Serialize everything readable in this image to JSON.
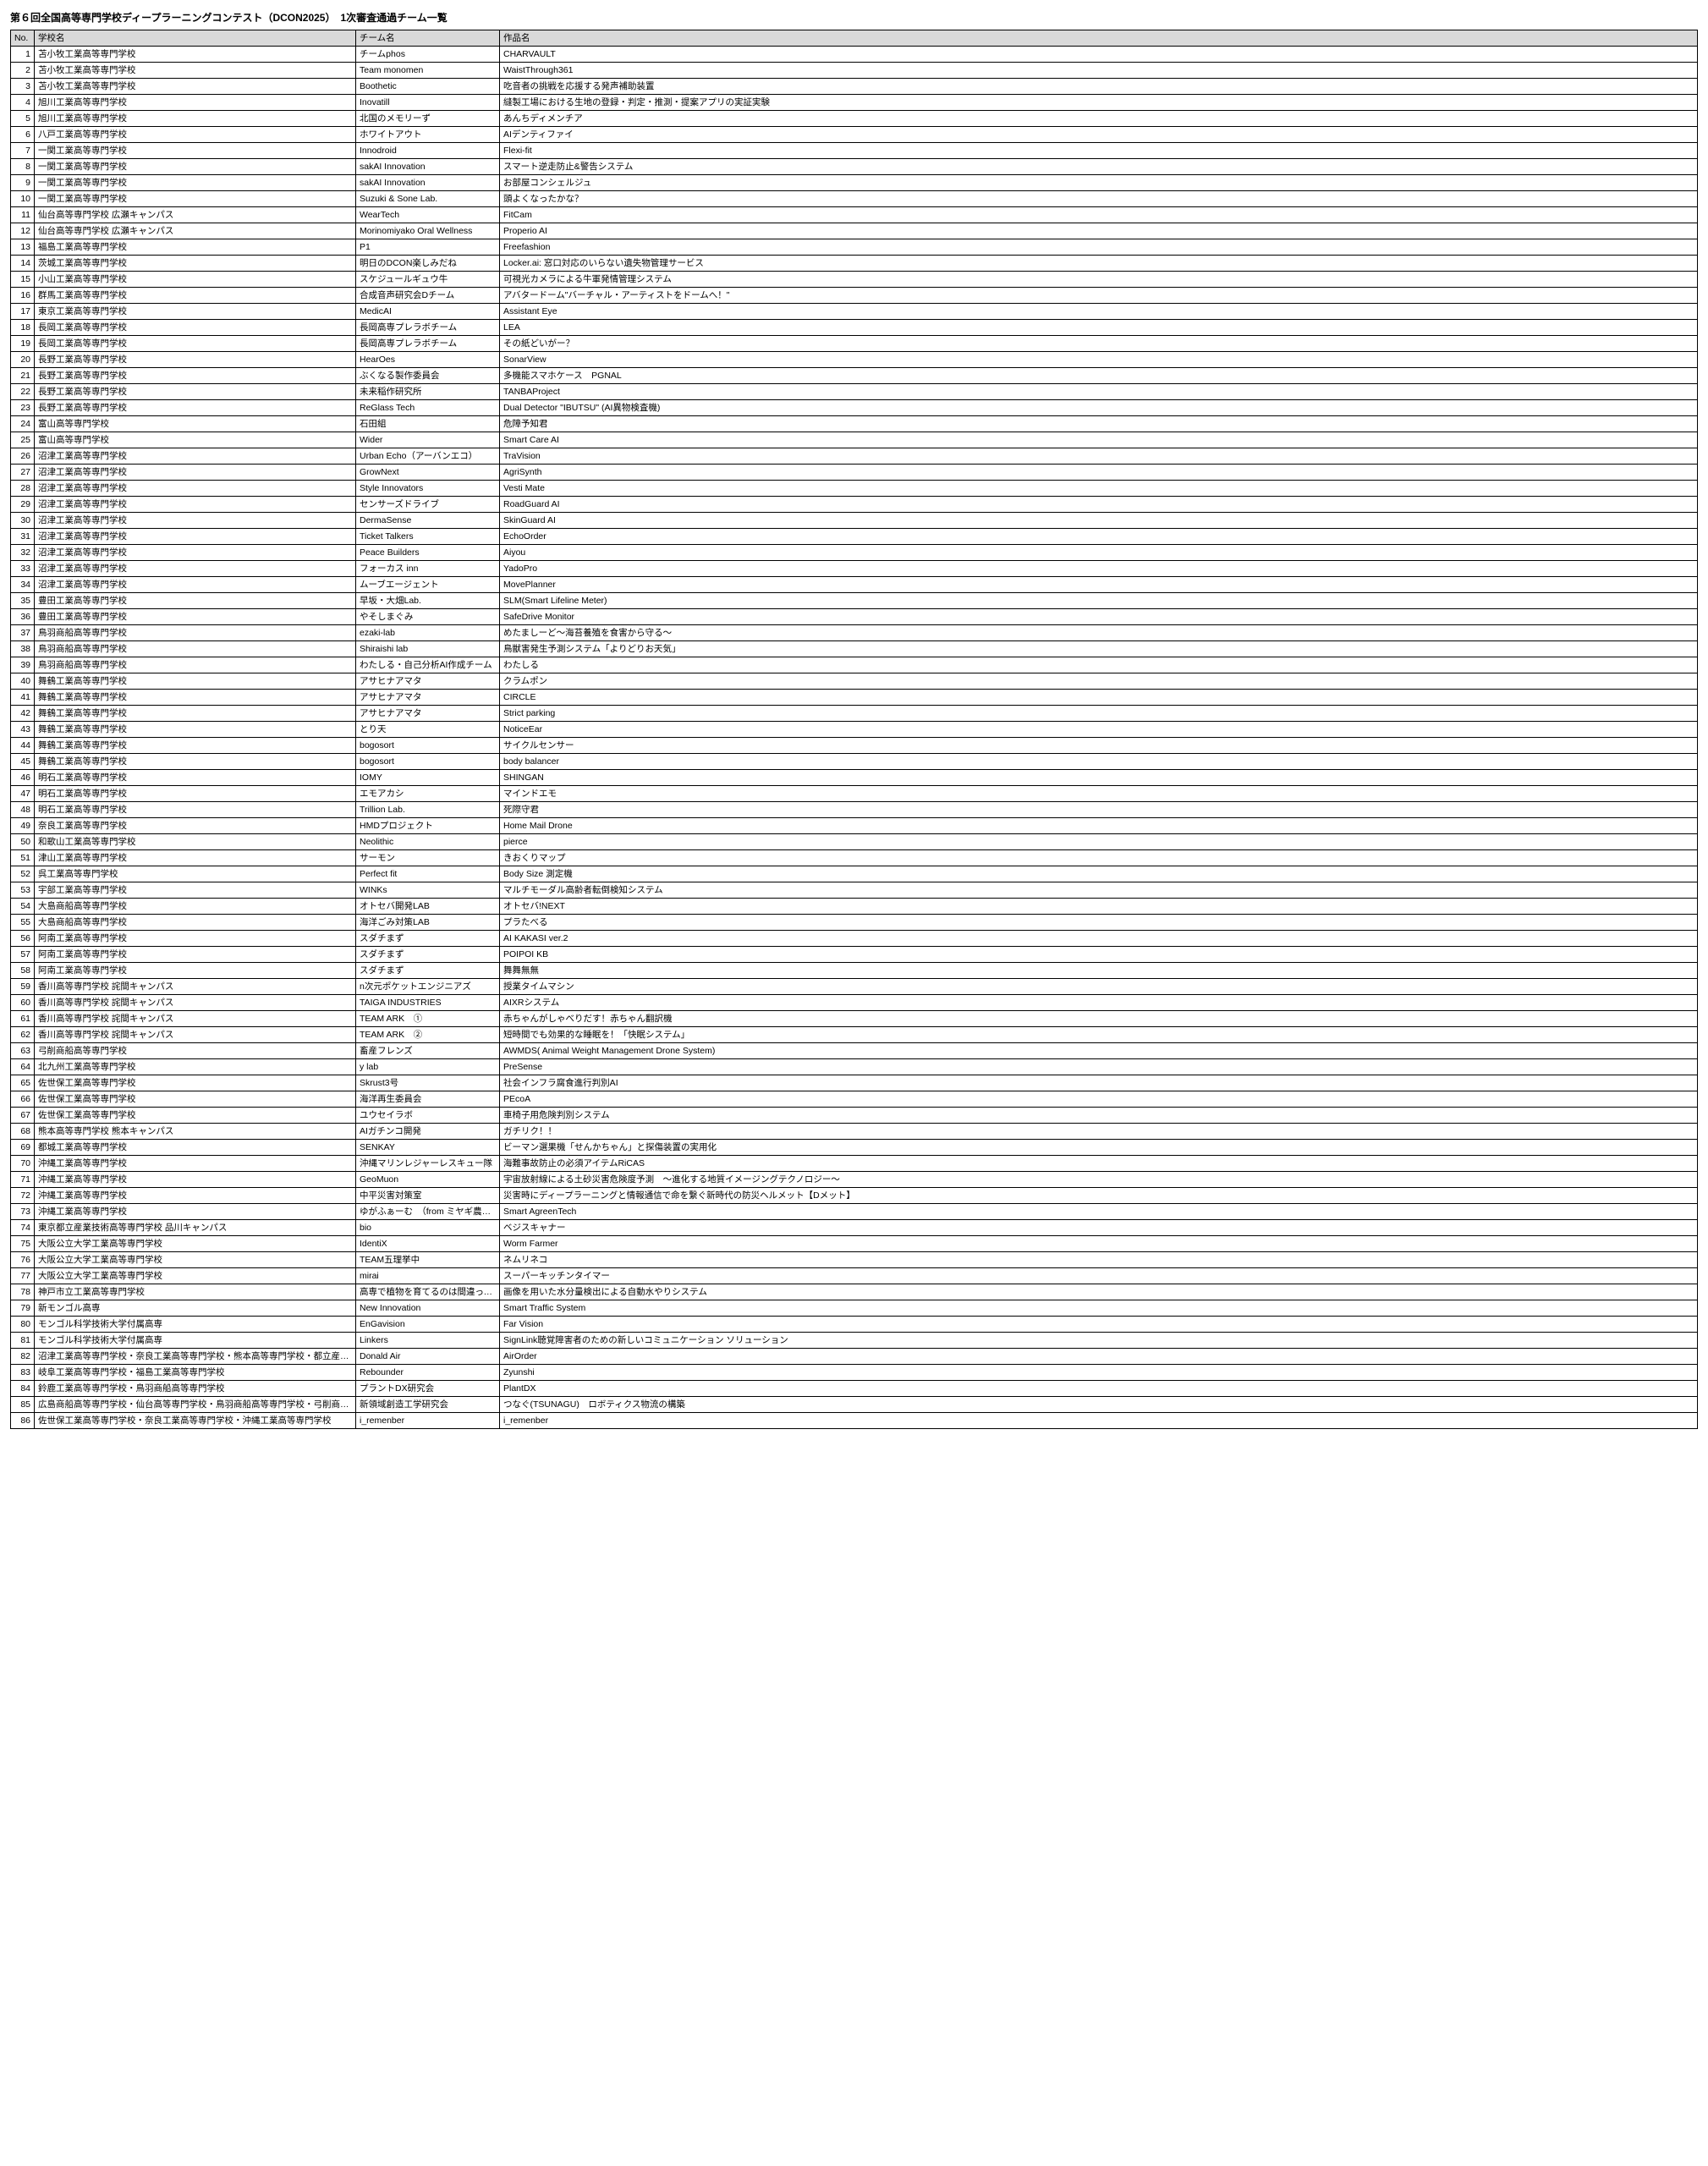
{
  "title": "第６回全国高等専門学校ディープラーニングコンテスト（DCON2025）　1次審査通過チーム一覧",
  "columns": [
    "No.",
    "学校名",
    "チーム名",
    "作品名"
  ],
  "rows": [
    {
      "no": 1,
      "school": "苫小牧工業高等専門学校",
      "team": "チームphos",
      "work": "CHARVAULT"
    },
    {
      "no": 2,
      "school": "苫小牧工業高等専門学校",
      "team": "Team monomen",
      "work": "WaistThrough361"
    },
    {
      "no": 3,
      "school": "苫小牧工業高等専門学校",
      "team": "Boothetic",
      "work": "吃音者の挑戦を応援する発声補助装置"
    },
    {
      "no": 4,
      "school": "旭川工業高等専門学校",
      "team": "Inovatill",
      "work": "縫製工場における生地の登録・判定・推測・提案アプリの実証実験"
    },
    {
      "no": 5,
      "school": "旭川工業高等専門学校",
      "team": "北国のメモリーず",
      "work": "あんちディメンチア"
    },
    {
      "no": 6,
      "school": "八戸工業高等専門学校",
      "team": "ホワイトアウト",
      "work": "AIデンティファイ"
    },
    {
      "no": 7,
      "school": "一関工業高等専門学校",
      "team": "Innodroid",
      "work": "Flexi-fit"
    },
    {
      "no": 8,
      "school": "一関工業高等専門学校",
      "team": "sakAI Innovation",
      "work": "スマート逆走防止&警告システム"
    },
    {
      "no": 9,
      "school": "一関工業高等専門学校",
      "team": "sakAI Innovation",
      "work": "お部屋コンシェルジュ"
    },
    {
      "no": 10,
      "school": "一関工業高等専門学校",
      "team": "Suzuki & Sone Lab.",
      "work": "頭よくなったかな？"
    },
    {
      "no": 11,
      "school": "仙台高等専門学校 広瀬キャンパス",
      "team": "WearTech",
      "work": "FitCam"
    },
    {
      "no": 12,
      "school": "仙台高等専門学校 広瀬キャンパス",
      "team": "Morinomiyako Oral Wellness",
      "work": "Properio AI"
    },
    {
      "no": 13,
      "school": "福島工業高等専門学校",
      "team": "P1",
      "work": "Freefashion"
    },
    {
      "no": 14,
      "school": "茨城工業高等専門学校",
      "team": "明日のDCON楽しみだね",
      "work": "Locker.ai: 窓口対応のいらない遺失物管理サービス"
    },
    {
      "no": 15,
      "school": "小山工業高等専門学校",
      "team": "スケジュールギュウ牛",
      "work": "可視光カメラによる牛軍発情管理システム"
    },
    {
      "no": 16,
      "school": "群馬工業高等専門学校",
      "team": "合成音声研究会Dチーム",
      "work": "アバタードーム\"バーチャル・アーティストをドームへ！\""
    },
    {
      "no": 17,
      "school": "東京工業高等専門学校",
      "team": "MedicAI",
      "work": "Assistant Eye"
    },
    {
      "no": 18,
      "school": "長岡工業高等専門学校",
      "team": "長岡高専プレラボチーム",
      "work": "LEA"
    },
    {
      "no": 19,
      "school": "長岡工業高等専門学校",
      "team": "長岡高専プレラボチーム",
      "work": "その紙どいがー？"
    },
    {
      "no": 20,
      "school": "長野工業高等専門学校",
      "team": "HearOes",
      "work": "SonarView"
    },
    {
      "no": 21,
      "school": "長野工業高等専門学校",
      "team": "ぶくなる製作委員会",
      "work": "多機能スマホケース　PGNAL"
    },
    {
      "no": 22,
      "school": "長野工業高等専門学校",
      "team": "未来稲作研究所",
      "work": "TANBAProject"
    },
    {
      "no": 23,
      "school": "長野工業高等専門学校",
      "team": "ReGlass Tech",
      "work": "Dual Detector \"IBUTSU\" (AI異物検査機)"
    },
    {
      "no": 24,
      "school": "富山高等専門学校",
      "team": "石田組",
      "work": "危障予知君"
    },
    {
      "no": 25,
      "school": "富山高等専門学校",
      "team": "Wider",
      "work": "Smart Care AI"
    },
    {
      "no": 26,
      "school": "沼津工業高等専門学校",
      "team": "Urban Echo（アーバンエコ）",
      "work": "TraVision"
    },
    {
      "no": 27,
      "school": "沼津工業高等専門学校",
      "team": "GrowNext",
      "work": "AgriSynth"
    },
    {
      "no": 28,
      "school": "沼津工業高等専門学校",
      "team": "Style Innovators",
      "work": "Vesti Mate"
    },
    {
      "no": 29,
      "school": "沼津工業高等専門学校",
      "team": "センサーズドライブ",
      "work": "RoadGuard AI"
    },
    {
      "no": 30,
      "school": "沼津工業高等専門学校",
      "team": "DermaSense",
      "work": "SkinGuard AI"
    },
    {
      "no": 31,
      "school": "沼津工業高等専門学校",
      "team": "Ticket Talkers",
      "work": "EchoOrder"
    },
    {
      "no": 32,
      "school": "沼津工業高等専門学校",
      "team": "Peace Builders",
      "work": "Aiyou"
    },
    {
      "no": 33,
      "school": "沼津工業高等専門学校",
      "team": "フォーカス inn",
      "work": "YadoPro"
    },
    {
      "no": 34,
      "school": "沼津工業高等専門学校",
      "team": "ムーブエージェント",
      "work": "MovePlanner"
    },
    {
      "no": 35,
      "school": "豊田工業高等専門学校",
      "team": "早坂・大畑Lab.",
      "work": "SLM(Smart Lifeline Meter)"
    },
    {
      "no": 36,
      "school": "豊田工業高等専門学校",
      "team": "やそしまぐみ",
      "work": "SafeDrive Monitor"
    },
    {
      "no": 37,
      "school": "鳥羽商船高等専門学校",
      "team": "ezaki-lab",
      "work": "めたましーど～海苔養殖を食害から守る～"
    },
    {
      "no": 38,
      "school": "鳥羽商船高等専門学校",
      "team": "Shiraishi lab",
      "work": "鳥獣害発生予測システム「よりどりお天気」"
    },
    {
      "no": 39,
      "school": "鳥羽商船高等専門学校",
      "team": "わたしる・自己分析AI作成チーム",
      "work": "わたしる"
    },
    {
      "no": 40,
      "school": "舞鶴工業高等専門学校",
      "team": "アサヒナアマタ",
      "work": "クラムポン"
    },
    {
      "no": 41,
      "school": "舞鶴工業高等専門学校",
      "team": "アサヒナアマタ",
      "work": "CIRCLE"
    },
    {
      "no": 42,
      "school": "舞鶴工業高等専門学校",
      "team": "アサヒナアマタ",
      "work": "Strict parking"
    },
    {
      "no": 43,
      "school": "舞鶴工業高等専門学校",
      "team": "とり天",
      "work": "NoticeEar"
    },
    {
      "no": 44,
      "school": "舞鶴工業高等専門学校",
      "team": "bogosort",
      "work": "サイクルセンサー"
    },
    {
      "no": 45,
      "school": "舞鶴工業高等専門学校",
      "team": "bogosort",
      "work": "body balancer"
    },
    {
      "no": 46,
      "school": "明石工業高等専門学校",
      "team": "IOMY",
      "work": "SHINGAN"
    },
    {
      "no": 47,
      "school": "明石工業高等専門学校",
      "team": "エモアカシ",
      "work": "マインドエモ"
    },
    {
      "no": 48,
      "school": "明石工業高等専門学校",
      "team": "Trillion Lab.",
      "work": "死際守君"
    },
    {
      "no": 49,
      "school": "奈良工業高等専門学校",
      "team": "HMDプロジェクト",
      "work": "Home Mail Drone"
    },
    {
      "no": 50,
      "school": "和歌山工業高等専門学校",
      "team": "Neolithic",
      "work": "pierce"
    },
    {
      "no": 51,
      "school": "津山工業高等専門学校",
      "team": "サーモン",
      "work": "きおくりマップ"
    },
    {
      "no": 52,
      "school": "呉工業高等専門学校",
      "team": "Perfect fit",
      "work": "Body Size 測定機"
    },
    {
      "no": 53,
      "school": "宇部工業高等専門学校",
      "team": "WINKs",
      "work": "マルチモーダル高齢者転倒検知システム"
    },
    {
      "no": 54,
      "school": "大島商船高等専門学校",
      "team": "オトセバ開発LAB",
      "work": "オトセバ!NEXT"
    },
    {
      "no": 55,
      "school": "大島商船高等専門学校",
      "team": "海洋ごみ対策LAB",
      "work": "プラたべる"
    },
    {
      "no": 56,
      "school": "阿南工業高等専門学校",
      "team": "スダチまず",
      "work": "AI KAKASI ver.2"
    },
    {
      "no": 57,
      "school": "阿南工業高等専門学校",
      "team": "スダチまず",
      "work": "POIPOI KB"
    },
    {
      "no": 58,
      "school": "阿南工業高等専門学校",
      "team": "スダチまず",
      "work": "舞舞無無"
    },
    {
      "no": 59,
      "school": "香川高等専門学校 詫間キャンパス",
      "team": "n次元ポケットエンジニアズ",
      "work": "授業タイムマシン"
    },
    {
      "no": 60,
      "school": "香川高等専門学校 詫間キャンパス",
      "team": "TAIGA INDUSTRIES",
      "work": "AIXRシステム"
    },
    {
      "no": 61,
      "school": "香川高等専門学校 詫間キャンパス",
      "team": "TEAM ARK　①",
      "work": "赤ちゃんがしゃべりだす！赤ちゃん翻訳機"
    },
    {
      "no": 62,
      "school": "香川高等専門学校 詫間キャンパス",
      "team": "TEAM ARK　②",
      "work": "短時間でも効果的な睡眠を！「快眠システム」"
    },
    {
      "no": 63,
      "school": "弓削商船高等専門学校",
      "team": "畜産フレンズ",
      "work": "AWMDS( Animal Weight Management Drone System)"
    },
    {
      "no": 64,
      "school": "北九州工業高等専門学校",
      "team": "y lab",
      "work": "PreSense"
    },
    {
      "no": 65,
      "school": "佐世保工業高等専門学校",
      "team": "Skrust3号",
      "work": "社会インフラ腐食進行判別AI"
    },
    {
      "no": 66,
      "school": "佐世保工業高等専門学校",
      "team": "海洋再生委員会",
      "work": "PEcoA"
    },
    {
      "no": 67,
      "school": "佐世保工業高等専門学校",
      "team": "ユウセイラボ",
      "work": "車椅子用危険判別システム"
    },
    {
      "no": 68,
      "school": "熊本高等専門学校 熊本キャンパス",
      "team": "AIガチンコ開発",
      "work": "ガチリク！！"
    },
    {
      "no": 69,
      "school": "都城工業高等専門学校",
      "team": "SENKAY",
      "work": "ビーマン選果機「せんかちゃん」と探傷装置の実用化"
    },
    {
      "no": 70,
      "school": "沖縄工業高等専門学校",
      "team": "沖縄マリンレジャーレスキュー隊",
      "work": "海難事故防止の必須アイテムRiCAS"
    },
    {
      "no": 71,
      "school": "沖縄工業高等専門学校",
      "team": "GeoMuon",
      "work": "宇宙放射線による土砂災害危険度予測　～進化する地質イメージングテクノロジー～"
    },
    {
      "no": 72,
      "school": "沖縄工業高等専門学校",
      "team": "中平災害対策室",
      "work": "災害時にディープラーニングと情報通信で命を繋ぐ新時代の防災ヘルメット【Dメット】"
    },
    {
      "no": 73,
      "school": "沖縄工業高等専門学校",
      "team": "ゆがふぁーむ　（from ミヤギ農家）",
      "work": "Smart AgreenTech"
    },
    {
      "no": 74,
      "school": "東京都立産業技術高等専門学校 品川キャンパス",
      "team": "bio",
      "work": "ベジスキャナー"
    },
    {
      "no": 75,
      "school": "大阪公立大学工業高等専門学校",
      "team": "IdentiX",
      "work": "Worm Farmer"
    },
    {
      "no": 76,
      "school": "大阪公立大学工業高等専門学校",
      "team": "TEAM五理挙中",
      "work": "ネムリネコ"
    },
    {
      "no": 77,
      "school": "大阪公立大学工業高等専門学校",
      "team": "mirai",
      "work": "スーパーキッチンタイマー"
    },
    {
      "no": 78,
      "school": "神戸市立工業高等専門学校",
      "team": "高専で植物を育てるのは間違っているだろうか",
      "work": "画像を用いた水分量検出による自動水やりシステム"
    },
    {
      "no": 79,
      "school": "新モンゴル高専",
      "team": "New Innovation",
      "work": "Smart Traffic System"
    },
    {
      "no": 80,
      "school": "モンゴル科学技術大学付属高専",
      "team": "EnGavision",
      "work": "Far Vision"
    },
    {
      "no": 81,
      "school": "モンゴル科学技術大学付属高専",
      "team": "Linkers",
      "work": "SignLink聴覚障害者のための新しいコミュニケーション ソリューション"
    },
    {
      "no": 82,
      "school": "沼津工業高等専門学校・奈良工業高等専門学校・熊本高等専門学校・都立産業技術高等専門学校",
      "team": "Donald Air",
      "work": "AirOrder"
    },
    {
      "no": 83,
      "school": "岐阜工業高等専門学校・福島工業高等専門学校",
      "team": "Rebounder",
      "work": "Zyunshi"
    },
    {
      "no": 84,
      "school": "鈴鹿工業高等専門学校・鳥羽商船高等専門学校",
      "team": "プラントDX研究会",
      "work": "PlantDX"
    },
    {
      "no": 85,
      "school": "広島商船高等専門学校・仙台高等専門学校・鳥羽商船高等専門学校・弓削商船高等専門学校",
      "team": "新領域創造工学研究会",
      "work": "つなぐ(TSUNAGU)　ロボティクス物流の構築"
    },
    {
      "no": 86,
      "school": "佐世保工業高等専門学校・奈良工業高等専門学校・沖縄工業高等専門学校",
      "team": "i_remenber",
      "work": "i_remenber"
    }
  ]
}
